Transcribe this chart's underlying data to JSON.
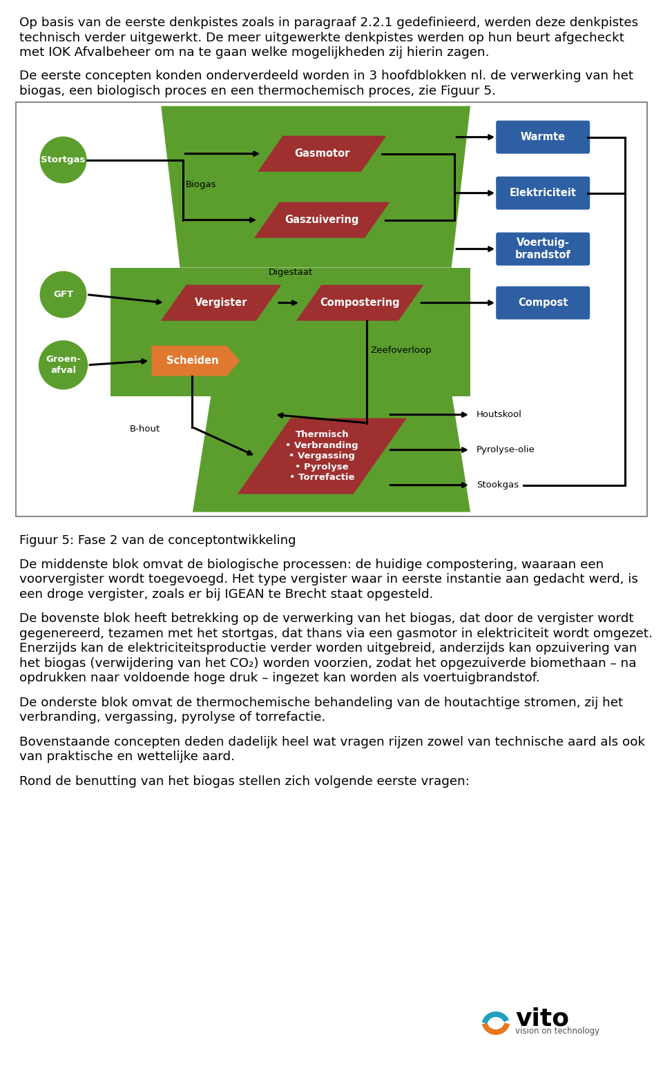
{
  "page_bg": "#ffffff",
  "text_color": "#000000",
  "c_green": "#5c9e2e",
  "c_red": "#9e3030",
  "c_orange": "#e07830",
  "c_blue": "#2e5fa3",
  "para1_lines": [
    "Op basis van de eerste denkpistes zoals in paragraaf 2.2.1 gedefinieerd, werden deze denkpistes",
    "technisch verder uitgewerkt. De meer uitgewerkte denkpistes werden op hun beurt afgecheckt",
    "met IOK Afvalbeheer om na te gaan welke mogelijkheden zij hierin zagen."
  ],
  "para2_lines": [
    "De eerste concepten konden onderverdeeld worden in 3 hoofdblokken nl. de verwerking van het",
    "biogas, een biologisch proces en een thermochemisch proces, zie Figuur 5."
  ],
  "fig_caption": "Figuur 5: Fase 2 van de conceptontwikkeling",
  "para3_lines": [
    "De middenste blok omvat de biologische processen: de huidige compostering, waaraan een",
    "voorvergister wordt toegevoegd. Het type vergister waar in eerste instantie aan gedacht werd, is",
    "een droge vergister, zoals er bij IGEAN te Brecht staat opgesteld."
  ],
  "para4_lines": [
    "De bovenste blok heeft betrekking op de verwerking van het biogas, dat door de vergister wordt",
    "gegenereerd, tezamen met het stortgas, dat thans via een gasmotor in elektriciteit wordt omgezet.",
    "Enerzijds kan de elektriciteitsproductie verder worden uitgebreid, anderzijds kan opzuivering van",
    "het biogas (verwijdering van het CO₂) worden voorzien, zodat het opgezuiverde biomethaan – na",
    "opdrukken naar voldoende hoge druk – ingezet kan worden als voertuigbrandstof."
  ],
  "para5_lines": [
    "De onderste blok omvat de thermochemische behandeling van de houtachtige stromen, zij het",
    "verbranding, vergassing, pyrolyse of torrefactie."
  ],
  "para6_lines": [
    "Bovenstaande concepten deden dadelijk heel wat vragen rijzen zowel van technische aard als ook",
    "van praktische en wettelijke aard."
  ],
  "para7": "Rond de benutting van het biogas stellen zich volgende eerste vragen:"
}
